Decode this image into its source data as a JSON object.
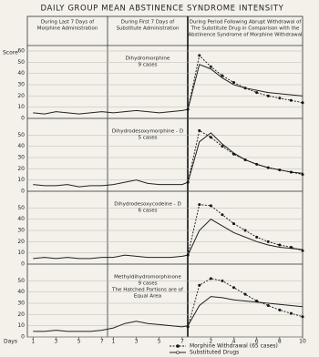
{
  "title": "DAILY GROUP MEAN ABSTINENCE SYNDROME INTENSITY",
  "column_headers": [
    [
      "During Last 7 Days of",
      "Morphine Administration"
    ],
    [
      "During First 7 Days of",
      "Substitute Administration"
    ],
    [
      "During Period Following Abrupt Withdrawal of",
      "The Substitute Drug in Comparison with the",
      "Abstinence Syndrome of Morphine Withdrawal"
    ]
  ],
  "chart_data": [
    {
      "type": "line",
      "ylabel": "Score",
      "annotation": [
        "Dihydromorphine",
        "9 cases"
      ],
      "x": [
        1,
        2,
        3,
        4,
        5,
        6,
        7,
        8,
        9,
        10,
        11,
        12,
        13,
        14,
        14.5,
        15.5,
        16.5,
        17.5,
        18.5,
        19.5,
        20.5,
        21.5,
        22.5,
        23.5,
        24.5
      ],
      "xlim": [
        0.5,
        24.5
      ],
      "ylim": [
        0,
        60
      ],
      "yticks": [
        0,
        10,
        20,
        30,
        40,
        50,
        60
      ],
      "grid": true,
      "series": [
        {
          "color": "#222222",
          "style": "solid",
          "values": [
            5,
            4,
            6,
            5,
            4,
            5,
            6,
            5,
            6,
            7,
            6,
            5,
            6,
            7,
            8,
            48,
            44,
            36,
            30,
            27,
            25,
            23,
            22,
            21,
            20
          ]
        },
        {
          "color": "#111111",
          "style": "dashed",
          "values": [
            null,
            null,
            null,
            null,
            null,
            null,
            null,
            null,
            null,
            null,
            null,
            null,
            null,
            null,
            8,
            56,
            46,
            38,
            32,
            27,
            23,
            20,
            18,
            16,
            14
          ]
        }
      ]
    },
    {
      "type": "line",
      "annotation": [
        "Dihydrodesoxymorphine - D",
        "5 cases"
      ],
      "x": [
        1,
        2,
        3,
        4,
        5,
        6,
        7,
        8,
        9,
        10,
        11,
        12,
        13,
        14,
        14.5,
        15.5,
        16.5,
        17.5,
        18.5,
        19.5,
        20.5,
        21.5,
        22.5,
        23.5,
        24.5
      ],
      "xlim": [
        0.5,
        24.5
      ],
      "ylim": [
        0,
        60
      ],
      "yticks": [
        0,
        10,
        20,
        30,
        40,
        50
      ],
      "grid": true,
      "series": [
        {
          "color": "#222222",
          "style": "solid",
          "values": [
            6,
            5,
            5,
            6,
            4,
            5,
            5,
            6,
            8,
            10,
            7,
            6,
            6,
            6,
            8,
            44,
            52,
            42,
            34,
            28,
            24,
            21,
            19,
            17,
            16
          ]
        },
        {
          "color": "#111111",
          "style": "dashed",
          "values": [
            null,
            null,
            null,
            null,
            null,
            null,
            null,
            null,
            null,
            null,
            null,
            null,
            null,
            null,
            8,
            54,
            48,
            40,
            33,
            28,
            24,
            21,
            19,
            17,
            15
          ]
        }
      ]
    },
    {
      "type": "line",
      "annotation": [
        "Dihydrodesoxycodeine - D",
        "6 cases"
      ],
      "x": [
        1,
        2,
        3,
        4,
        5,
        6,
        7,
        8,
        9,
        10,
        11,
        12,
        13,
        14,
        14.5,
        15.5,
        16.5,
        17.5,
        18.5,
        19.5,
        20.5,
        21.5,
        22.5,
        23.5,
        24.5
      ],
      "xlim": [
        0.5,
        24.5
      ],
      "ylim": [
        0,
        60
      ],
      "yticks": [
        0,
        10,
        20,
        30,
        40,
        50
      ],
      "grid": true,
      "series": [
        {
          "color": "#222222",
          "style": "solid",
          "values": [
            5,
            6,
            5,
            6,
            5,
            5,
            6,
            6,
            8,
            7,
            6,
            6,
            6,
            7,
            8,
            30,
            40,
            34,
            28,
            24,
            20,
            17,
            15,
            14,
            13
          ]
        },
        {
          "color": "#111111",
          "style": "dashed",
          "values": [
            null,
            null,
            null,
            null,
            null,
            null,
            null,
            null,
            null,
            null,
            null,
            null,
            null,
            null,
            8,
            53,
            52,
            44,
            36,
            30,
            24,
            20,
            17,
            15,
            12
          ]
        }
      ]
    },
    {
      "type": "line",
      "annotation": [
        "Methyldihydromorphinone",
        "9 cases",
        "The Hatched Portions are of",
        "Equal Area"
      ],
      "xlabel": "Days",
      "x": [
        1,
        2,
        3,
        4,
        5,
        6,
        7,
        8,
        9,
        10,
        11,
        12,
        13,
        14,
        14.5,
        15.5,
        16.5,
        17.5,
        18.5,
        19.5,
        20.5,
        21.5,
        22.5,
        23.5,
        24.5
      ],
      "xlim": [
        0.5,
        24.5
      ],
      "xticks": [
        1,
        3,
        5,
        7,
        {
          "value": 8,
          "label": "1"
        },
        {
          "value": 10,
          "label": "3"
        },
        {
          "value": 12,
          "label": "5"
        },
        {
          "value": 14,
          "label": "7"
        },
        {
          "value": 16.5,
          "label": "2"
        },
        {
          "value": 18.5,
          "label": "4"
        },
        {
          "value": 20.5,
          "label": "6"
        },
        {
          "value": 22.5,
          "label": "8"
        },
        {
          "value": 24.5,
          "label": "10"
        }
      ],
      "ylim": [
        0,
        60
      ],
      "yticks": [
        0,
        10,
        20,
        30,
        40,
        50
      ],
      "grid": true,
      "series": [
        {
          "name": "Substituted Drugs",
          "color": "#222222",
          "style": "solid",
          "values": [
            5,
            5,
            6,
            5,
            5,
            5,
            6,
            8,
            12,
            14,
            12,
            11,
            10,
            9,
            10,
            28,
            36,
            35,
            33,
            32,
            31,
            30,
            29,
            28,
            27
          ]
        },
        {
          "name": "Morphine Withdrawal (65 cases)",
          "color": "#111111",
          "style": "dashed",
          "values": [
            null,
            null,
            null,
            null,
            null,
            null,
            null,
            null,
            null,
            null,
            null,
            null,
            null,
            null,
            9,
            46,
            52,
            50,
            44,
            38,
            32,
            28,
            24,
            21,
            18
          ]
        }
      ]
    }
  ]
}
